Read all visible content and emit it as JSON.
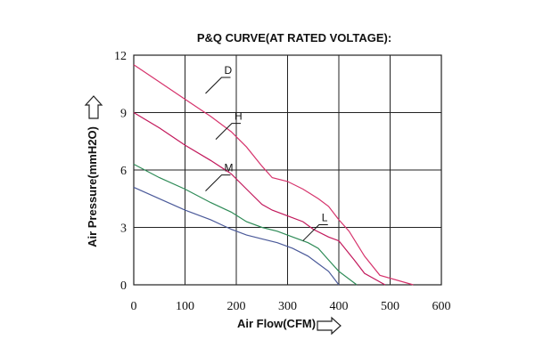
{
  "chart_data": {
    "type": "line",
    "title": "P&Q CURVE(AT RATED VOLTAGE):",
    "xlabel": "Air Flow(CFM)",
    "ylabel": "Air Pressure(mmH2O)",
    "xlim": [
      0,
      600
    ],
    "ylim": [
      0,
      12
    ],
    "x_ticks": [
      "0",
      "100",
      "200",
      "300",
      "400",
      "500",
      "600"
    ],
    "y_ticks": [
      "0",
      "3",
      "6",
      "9",
      "12"
    ],
    "grid": true,
    "series": [
      {
        "name": "D",
        "color": "#d6336c",
        "points": [
          [
            0,
            11.5
          ],
          [
            50,
            10.6
          ],
          [
            100,
            9.7
          ],
          [
            150,
            8.8
          ],
          [
            190,
            8.0
          ],
          [
            220,
            7.2
          ],
          [
            250,
            6.2
          ],
          [
            270,
            5.6
          ],
          [
            300,
            5.4
          ],
          [
            330,
            5.0
          ],
          [
            360,
            4.5
          ],
          [
            380,
            4.1
          ],
          [
            400,
            3.4
          ],
          [
            420,
            2.8
          ],
          [
            450,
            1.5
          ],
          [
            480,
            0.5
          ],
          [
            545,
            0.0
          ]
        ],
        "label_at": [
          140,
          10.0
        ]
      },
      {
        "name": "H",
        "color": "#c2185b",
        "points": [
          [
            0,
            9.0
          ],
          [
            50,
            8.2
          ],
          [
            100,
            7.3
          ],
          [
            150,
            6.5
          ],
          [
            190,
            5.8
          ],
          [
            220,
            5.0
          ],
          [
            250,
            4.2
          ],
          [
            270,
            3.9
          ],
          [
            300,
            3.6
          ],
          [
            330,
            3.3
          ],
          [
            350,
            2.9
          ],
          [
            380,
            2.5
          ],
          [
            400,
            2.3
          ],
          [
            430,
            1.3
          ],
          [
            450,
            0.6
          ],
          [
            490,
            0.0
          ]
        ],
        "label_at": [
          160,
          7.6
        ]
      },
      {
        "name": "M",
        "color": "#2e8b57",
        "points": [
          [
            0,
            6.3
          ],
          [
            50,
            5.6
          ],
          [
            100,
            5.0
          ],
          [
            150,
            4.3
          ],
          [
            190,
            3.8
          ],
          [
            220,
            3.3
          ],
          [
            250,
            3.0
          ],
          [
            280,
            2.8
          ],
          [
            310,
            2.5
          ],
          [
            340,
            2.2
          ],
          [
            360,
            1.9
          ],
          [
            380,
            1.3
          ],
          [
            400,
            0.7
          ],
          [
            435,
            0.0
          ]
        ],
        "label_at": [
          140,
          4.9
        ]
      },
      {
        "name": "L",
        "color": "#4b5a9a",
        "points": [
          [
            0,
            5.1
          ],
          [
            50,
            4.5
          ],
          [
            100,
            3.9
          ],
          [
            150,
            3.4
          ],
          [
            190,
            2.9
          ],
          [
            220,
            2.6
          ],
          [
            250,
            2.4
          ],
          [
            280,
            2.2
          ],
          [
            310,
            1.9
          ],
          [
            340,
            1.5
          ],
          [
            360,
            1.1
          ],
          [
            380,
            0.7
          ],
          [
            400,
            0.0
          ]
        ],
        "label_at": [
          330,
          2.3
        ]
      }
    ]
  }
}
